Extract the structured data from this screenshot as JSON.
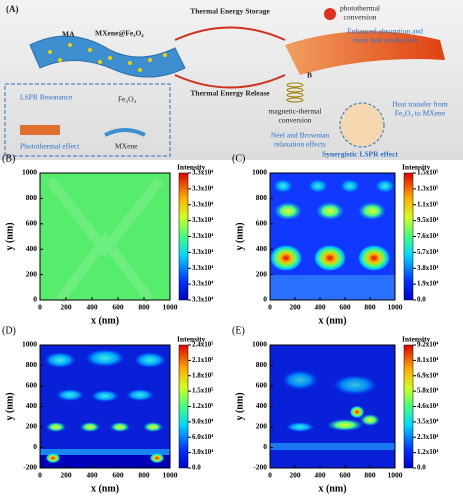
{
  "panel_a": {
    "label": "(A)",
    "storage": "Thermal Energy Storage",
    "release": "Thermal Energy Release",
    "ma": "MA",
    "composite": "MXene@Fe₃O₄",
    "photothermal_conversion": [
      "photothermal",
      "conversion"
    ],
    "enhanced": [
      "Enhanced absorption and",
      "more heat production"
    ],
    "lspr": "LSPR Resonance",
    "fe3o4": "Fe₃O₄",
    "photothermal_effect": "Photothermal effect",
    "mxene": "MXene",
    "magnetic": [
      "magnetic-thermal",
      "conversion"
    ],
    "field": "B",
    "neel": [
      "Néel and Brownian",
      "relaxation effects"
    ],
    "heat_transfer": [
      "Heat transfer from",
      "Fe₃O₄ to MXene"
    ],
    "synergistic": "Synergistic LSPR effect"
  },
  "chart_data": [
    {
      "type": "heatmap",
      "panel": "(B)",
      "x_label": "x (nm)",
      "y_label": "y (nm)",
      "xlim": [
        0,
        1000
      ],
      "xticks": [
        0,
        200,
        400,
        600,
        800,
        1000
      ],
      "ylim": [
        0,
        1000
      ],
      "yticks": [
        0,
        200,
        400,
        600,
        800,
        1000
      ],
      "colorbar": {
        "title": "Intensity",
        "lim": [
          32960,
          33040
        ],
        "ticks": [
          {
            "value": 32960,
            "label": "3.3x10⁴"
          },
          {
            "value": 32970,
            "label": "3.3x10⁴"
          },
          {
            "value": 32980,
            "label": "3.3x10⁴"
          },
          {
            "value": 32990,
            "label": "3.3x10⁴"
          },
          {
            "value": 33000,
            "label": "3.3x10⁴"
          },
          {
            "value": 33010,
            "label": "3.3x10⁴"
          },
          {
            "value": 33020,
            "label": "3.3x10⁴"
          },
          {
            "value": 33030,
            "label": "3.3x10⁴"
          },
          {
            "value": 33040,
            "label": "3.3x10⁴"
          }
        ]
      }
    },
    {
      "type": "heatmap",
      "panel": "(C)",
      "x_label": "x (nm)",
      "y_label": "y (nm)",
      "xlim": [
        0,
        1000
      ],
      "xticks": [
        0,
        200,
        400,
        600,
        800,
        1000
      ],
      "ylim": [
        0,
        1000
      ],
      "yticks": [
        0,
        200,
        400,
        600,
        800,
        1000
      ],
      "colorbar": {
        "title": "Intensity",
        "lim": [
          0,
          152000
        ],
        "ticks": [
          {
            "value": 0,
            "label": "0.0"
          },
          {
            "value": 19000,
            "label": "1.9x10⁴"
          },
          {
            "value": 38000,
            "label": "3.8x10⁴"
          },
          {
            "value": 57000,
            "label": "5.7x10⁴"
          },
          {
            "value": 76000,
            "label": "7.6x10⁴"
          },
          {
            "value": 95000,
            "label": "9.5x10⁴"
          },
          {
            "value": 114000,
            "label": "1.1x10⁵"
          },
          {
            "value": 133000,
            "label": "1.3x10⁵"
          },
          {
            "value": 152000,
            "label": "1.5x10⁵"
          }
        ]
      }
    },
    {
      "type": "heatmap",
      "panel": "(D)",
      "x_label": "x (nm)",
      "y_label": "y (nm)",
      "xlim": [
        0,
        1000
      ],
      "xticks": [
        0,
        200,
        400,
        600,
        800,
        1000
      ],
      "ylim": [
        -200,
        1000
      ],
      "yticks": [
        -200,
        0,
        200,
        400,
        600,
        800,
        1000
      ],
      "colorbar": {
        "title": "Intensity",
        "lim": [
          0,
          240000
        ],
        "ticks": [
          {
            "value": 0,
            "label": "0.0"
          },
          {
            "value": 30000,
            "label": "3.0x10⁴"
          },
          {
            "value": 60000,
            "label": "6.0x10⁴"
          },
          {
            "value": 90000,
            "label": "9.0x10⁴"
          },
          {
            "value": 120000,
            "label": "1.2x10⁵"
          },
          {
            "value": 150000,
            "label": "1.5x10⁵"
          },
          {
            "value": 180000,
            "label": "1.8x10⁵"
          },
          {
            "value": 210000,
            "label": "2.1x10⁵"
          },
          {
            "value": 240000,
            "label": "2.4x10⁵"
          }
        ]
      }
    },
    {
      "type": "heatmap",
      "panel": "(E)",
      "x_label": "x (nm)",
      "y_label": "y (nm)",
      "xlim": [
        0,
        1000
      ],
      "xticks": [
        0,
        200,
        400,
        600,
        800,
        1000
      ],
      "ylim": [
        -200,
        1000
      ],
      "yticks": [
        -200,
        0,
        200,
        400,
        600,
        800,
        1000
      ],
      "colorbar": {
        "title": "Intensity",
        "lim": [
          0,
          92400
        ],
        "ticks": [
          {
            "value": 0,
            "label": "0.0"
          },
          {
            "value": 11550,
            "label": "1.2x10⁴"
          },
          {
            "value": 23100,
            "label": "2.3x10⁴"
          },
          {
            "value": 34650,
            "label": "3.5x10⁴"
          },
          {
            "value": 46200,
            "label": "4.6x10⁴"
          },
          {
            "value": 57750,
            "label": "5.8x10⁴"
          },
          {
            "value": 69300,
            "label": "6.9x10⁴"
          },
          {
            "value": 80850,
            "label": "8.1x10⁴"
          },
          {
            "value": 92400,
            "label": "9.2x10⁴"
          }
        ]
      }
    }
  ]
}
